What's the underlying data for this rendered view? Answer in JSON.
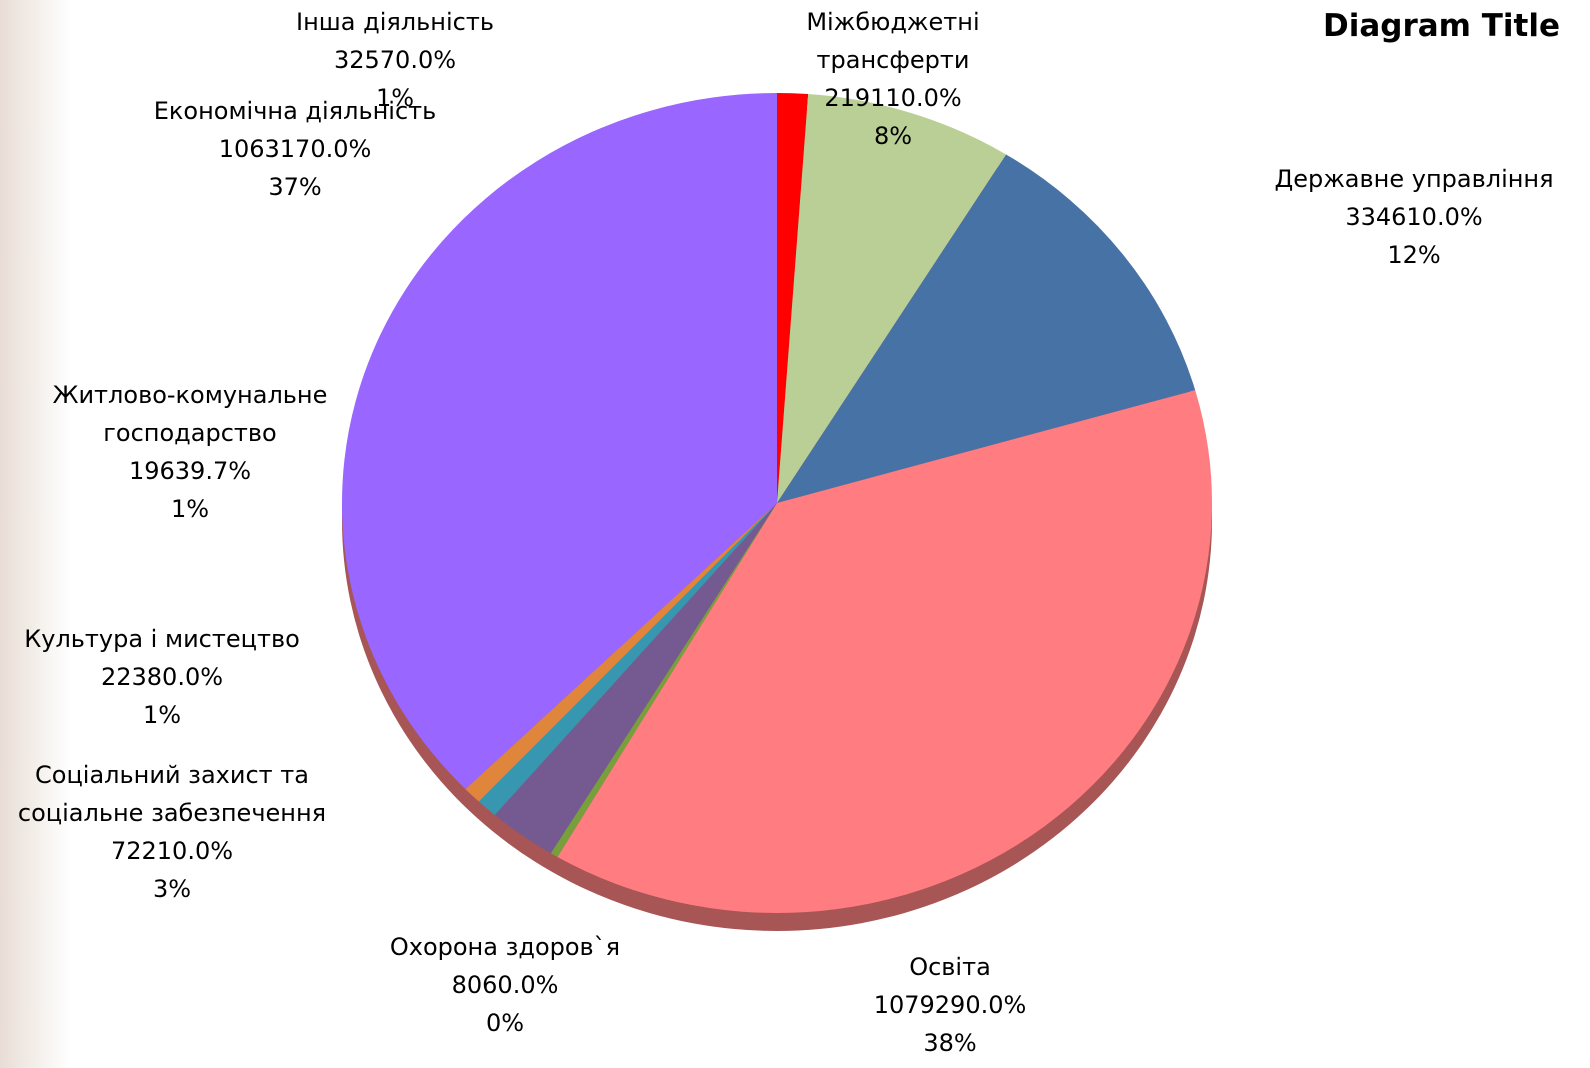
{
  "chart_data": {
    "type": "pie",
    "title": "Diagram Title",
    "categories": [
      "Інша діяльність",
      "Міжбюджетні трансферти",
      "Державне управління",
      "Освіта",
      "Охорона здоров`я",
      "Соціальний захист та соціальне забезпечення",
      "Культура і мистецтво",
      "Житлово-комунальне господарство",
      "Економічна діяльність"
    ],
    "values": [
      325.7,
      2191.1,
      3346.1,
      10792.9,
      80.6,
      722.1,
      223.8,
      196.397,
      10631.7
    ],
    "value_labels": [
      "32570.0%",
      "219110.0%",
      "334610.0%",
      "1079290.0%",
      "8060.0%",
      "72210.0%",
      "22380.0%",
      "19639.7%",
      "1063170.0%"
    ],
    "percent_labels": [
      "1%",
      "8%",
      "12%",
      "38%",
      "0%",
      "3%",
      "1%",
      "1%",
      "37%"
    ],
    "colors": [
      "#ff0000",
      "#bacf96",
      "#4672a6",
      "#ff7c80",
      "#77a03c",
      "#745a91",
      "#3797b0",
      "#e0863c",
      "#9966ff"
    ]
  }
}
